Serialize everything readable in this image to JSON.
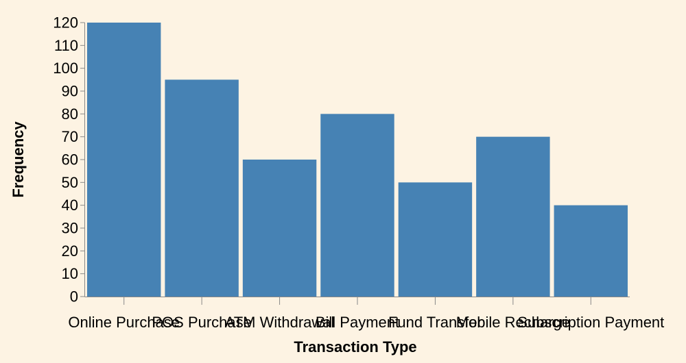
{
  "colors": {
    "background": "#fdf3e3",
    "bar": "#4682b4",
    "axis": "#888888",
    "text": "#000000"
  },
  "chart_data": {
    "type": "bar",
    "categories": [
      "Online Purchase",
      "POS Purchase",
      "ATM Withdrawal",
      "Bill Payment",
      "Fund Transfer",
      "Mobile Recharge",
      "Subscription Payment"
    ],
    "values": [
      120,
      95,
      60,
      80,
      50,
      70,
      40
    ],
    "xlabel": "Transaction Type",
    "ylabel": "Frequency",
    "ylim": [
      0,
      120
    ],
    "yticks": [
      "0",
      "10",
      "20",
      "30",
      "40",
      "50",
      "60",
      "70",
      "80",
      "90",
      "100",
      "110",
      "120"
    ],
    "grid": false,
    "legend": "none"
  }
}
